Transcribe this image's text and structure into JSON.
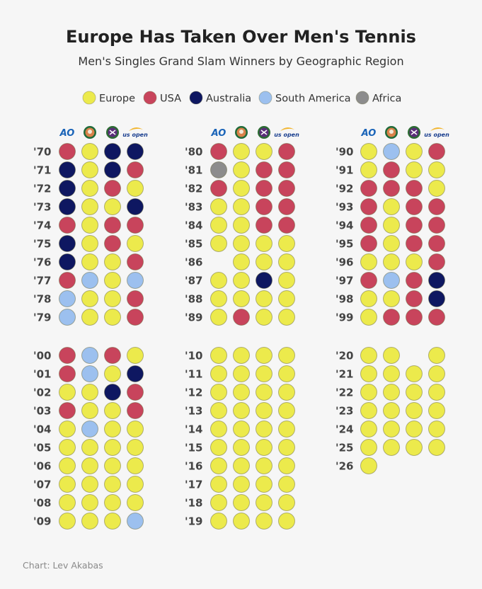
{
  "chart_data": {
    "type": "table",
    "title": "Europe Has Taken Over Men's Tennis",
    "subtitle": "Men's Singles Grand Slam Winners by Geographic Region",
    "credit": "Chart: Lev Akabas",
    "colors": {
      "Europe": "#ecea4c",
      "USA": "#c8445c",
      "Australia": "#0e1761",
      "South America": "#9cc0ef",
      "Africa": "#8c8c8c"
    },
    "legend": [
      "Europe",
      "USA",
      "Australia",
      "South America",
      "Africa"
    ],
    "tournaments": [
      {
        "name": "Australian Open",
        "icon": "ao-logo-icon",
        "label": "AO"
      },
      {
        "name": "French Open",
        "icon": "roland-garros-logo-icon"
      },
      {
        "name": "Wimbledon",
        "icon": "wimbledon-logo-icon"
      },
      {
        "name": "US Open",
        "icon": "us-open-logo-icon",
        "label": "us open"
      }
    ],
    "rows": [
      {
        "year": "'70",
        "winners": [
          "USA",
          "Europe",
          "Australia",
          "Australia"
        ]
      },
      {
        "year": "'71",
        "winners": [
          "Australia",
          "Europe",
          "Australia",
          "USA"
        ]
      },
      {
        "year": "'72",
        "winners": [
          "Australia",
          "Europe",
          "USA",
          "Europe"
        ]
      },
      {
        "year": "'73",
        "winners": [
          "Australia",
          "Europe",
          "Europe",
          "Australia"
        ]
      },
      {
        "year": "'74",
        "winners": [
          "USA",
          "Europe",
          "USA",
          "USA"
        ]
      },
      {
        "year": "'75",
        "winners": [
          "Australia",
          "Europe",
          "USA",
          "Europe"
        ]
      },
      {
        "year": "'76",
        "winners": [
          "Australia",
          "Europe",
          "Europe",
          "USA"
        ]
      },
      {
        "year": "'77",
        "winners": [
          "USA",
          "South America",
          "Europe",
          "South America"
        ]
      },
      {
        "year": "'78",
        "winners": [
          "South America",
          "Europe",
          "Europe",
          "USA"
        ]
      },
      {
        "year": "'79",
        "winners": [
          "South America",
          "Europe",
          "Europe",
          "USA"
        ]
      },
      {
        "year": "'80",
        "winners": [
          "USA",
          "Europe",
          "Europe",
          "USA"
        ]
      },
      {
        "year": "'81",
        "winners": [
          "Africa",
          "Europe",
          "USA",
          "USA"
        ]
      },
      {
        "year": "'82",
        "winners": [
          "USA",
          "Europe",
          "USA",
          "USA"
        ]
      },
      {
        "year": "'83",
        "winners": [
          "Europe",
          "Europe",
          "USA",
          "USA"
        ]
      },
      {
        "year": "'84",
        "winners": [
          "Europe",
          "Europe",
          "USA",
          "USA"
        ]
      },
      {
        "year": "'85",
        "winners": [
          "Europe",
          "Europe",
          "Europe",
          "Europe"
        ]
      },
      {
        "year": "'86",
        "winners": [
          null,
          "Europe",
          "Europe",
          "Europe"
        ]
      },
      {
        "year": "'87",
        "winners": [
          "Europe",
          "Europe",
          "Australia",
          "Europe"
        ]
      },
      {
        "year": "'88",
        "winners": [
          "Europe",
          "Europe",
          "Europe",
          "Europe"
        ]
      },
      {
        "year": "'89",
        "winners": [
          "Europe",
          "USA",
          "Europe",
          "Europe"
        ]
      },
      {
        "year": "'90",
        "winners": [
          "Europe",
          "South America",
          "Europe",
          "USA"
        ]
      },
      {
        "year": "'91",
        "winners": [
          "Europe",
          "USA",
          "Europe",
          "Europe"
        ]
      },
      {
        "year": "'92",
        "winners": [
          "USA",
          "USA",
          "USA",
          "Europe"
        ]
      },
      {
        "year": "'93",
        "winners": [
          "USA",
          "Europe",
          "USA",
          "USA"
        ]
      },
      {
        "year": "'94",
        "winners": [
          "USA",
          "Europe",
          "USA",
          "USA"
        ]
      },
      {
        "year": "'95",
        "winners": [
          "USA",
          "Europe",
          "USA",
          "USA"
        ]
      },
      {
        "year": "'96",
        "winners": [
          "Europe",
          "Europe",
          "Europe",
          "USA"
        ]
      },
      {
        "year": "'97",
        "winners": [
          "USA",
          "South America",
          "USA",
          "Australia"
        ]
      },
      {
        "year": "'98",
        "winners": [
          "Europe",
          "Europe",
          "USA",
          "Australia"
        ]
      },
      {
        "year": "'99",
        "winners": [
          "Europe",
          "USA",
          "USA",
          "USA"
        ]
      },
      {
        "year": "'00",
        "winners": [
          "USA",
          "South America",
          "USA",
          "Europe"
        ]
      },
      {
        "year": "'01",
        "winners": [
          "USA",
          "South America",
          "Europe",
          "Australia"
        ]
      },
      {
        "year": "'02",
        "winners": [
          "Europe",
          "Europe",
          "Australia",
          "USA"
        ]
      },
      {
        "year": "'03",
        "winners": [
          "USA",
          "Europe",
          "Europe",
          "USA"
        ]
      },
      {
        "year": "'04",
        "winners": [
          "Europe",
          "South America",
          "Europe",
          "Europe"
        ]
      },
      {
        "year": "'05",
        "winners": [
          "Europe",
          "Europe",
          "Europe",
          "Europe"
        ]
      },
      {
        "year": "'06",
        "winners": [
          "Europe",
          "Europe",
          "Europe",
          "Europe"
        ]
      },
      {
        "year": "'07",
        "winners": [
          "Europe",
          "Europe",
          "Europe",
          "Europe"
        ]
      },
      {
        "year": "'08",
        "winners": [
          "Europe",
          "Europe",
          "Europe",
          "Europe"
        ]
      },
      {
        "year": "'09",
        "winners": [
          "Europe",
          "Europe",
          "Europe",
          "South America"
        ]
      },
      {
        "year": "'10",
        "winners": [
          "Europe",
          "Europe",
          "Europe",
          "Europe"
        ]
      },
      {
        "year": "'11",
        "winners": [
          "Europe",
          "Europe",
          "Europe",
          "Europe"
        ]
      },
      {
        "year": "'12",
        "winners": [
          "Europe",
          "Europe",
          "Europe",
          "Europe"
        ]
      },
      {
        "year": "'13",
        "winners": [
          "Europe",
          "Europe",
          "Europe",
          "Europe"
        ]
      },
      {
        "year": "'14",
        "winners": [
          "Europe",
          "Europe",
          "Europe",
          "Europe"
        ]
      },
      {
        "year": "'15",
        "winners": [
          "Europe",
          "Europe",
          "Europe",
          "Europe"
        ]
      },
      {
        "year": "'16",
        "winners": [
          "Europe",
          "Europe",
          "Europe",
          "Europe"
        ]
      },
      {
        "year": "'17",
        "winners": [
          "Europe",
          "Europe",
          "Europe",
          "Europe"
        ]
      },
      {
        "year": "'18",
        "winners": [
          "Europe",
          "Europe",
          "Europe",
          "Europe"
        ]
      },
      {
        "year": "'19",
        "winners": [
          "Europe",
          "Europe",
          "Europe",
          "Europe"
        ]
      },
      {
        "year": "'20",
        "winners": [
          "Europe",
          "Europe",
          null,
          "Europe"
        ]
      },
      {
        "year": "'21",
        "winners": [
          "Europe",
          "Europe",
          "Europe",
          "Europe"
        ]
      },
      {
        "year": "'22",
        "winners": [
          "Europe",
          "Europe",
          "Europe",
          "Europe"
        ]
      },
      {
        "year": "'23",
        "winners": [
          "Europe",
          "Europe",
          "Europe",
          "Europe"
        ]
      },
      {
        "year": "'24",
        "winners": [
          "Europe",
          "Europe",
          "Europe",
          "Europe"
        ]
      },
      {
        "year": "'25",
        "winners": [
          "Europe",
          "Europe",
          "Europe",
          "Europe"
        ]
      },
      {
        "year": "'26",
        "winners": [
          "Europe",
          null,
          null,
          null
        ]
      }
    ]
  }
}
